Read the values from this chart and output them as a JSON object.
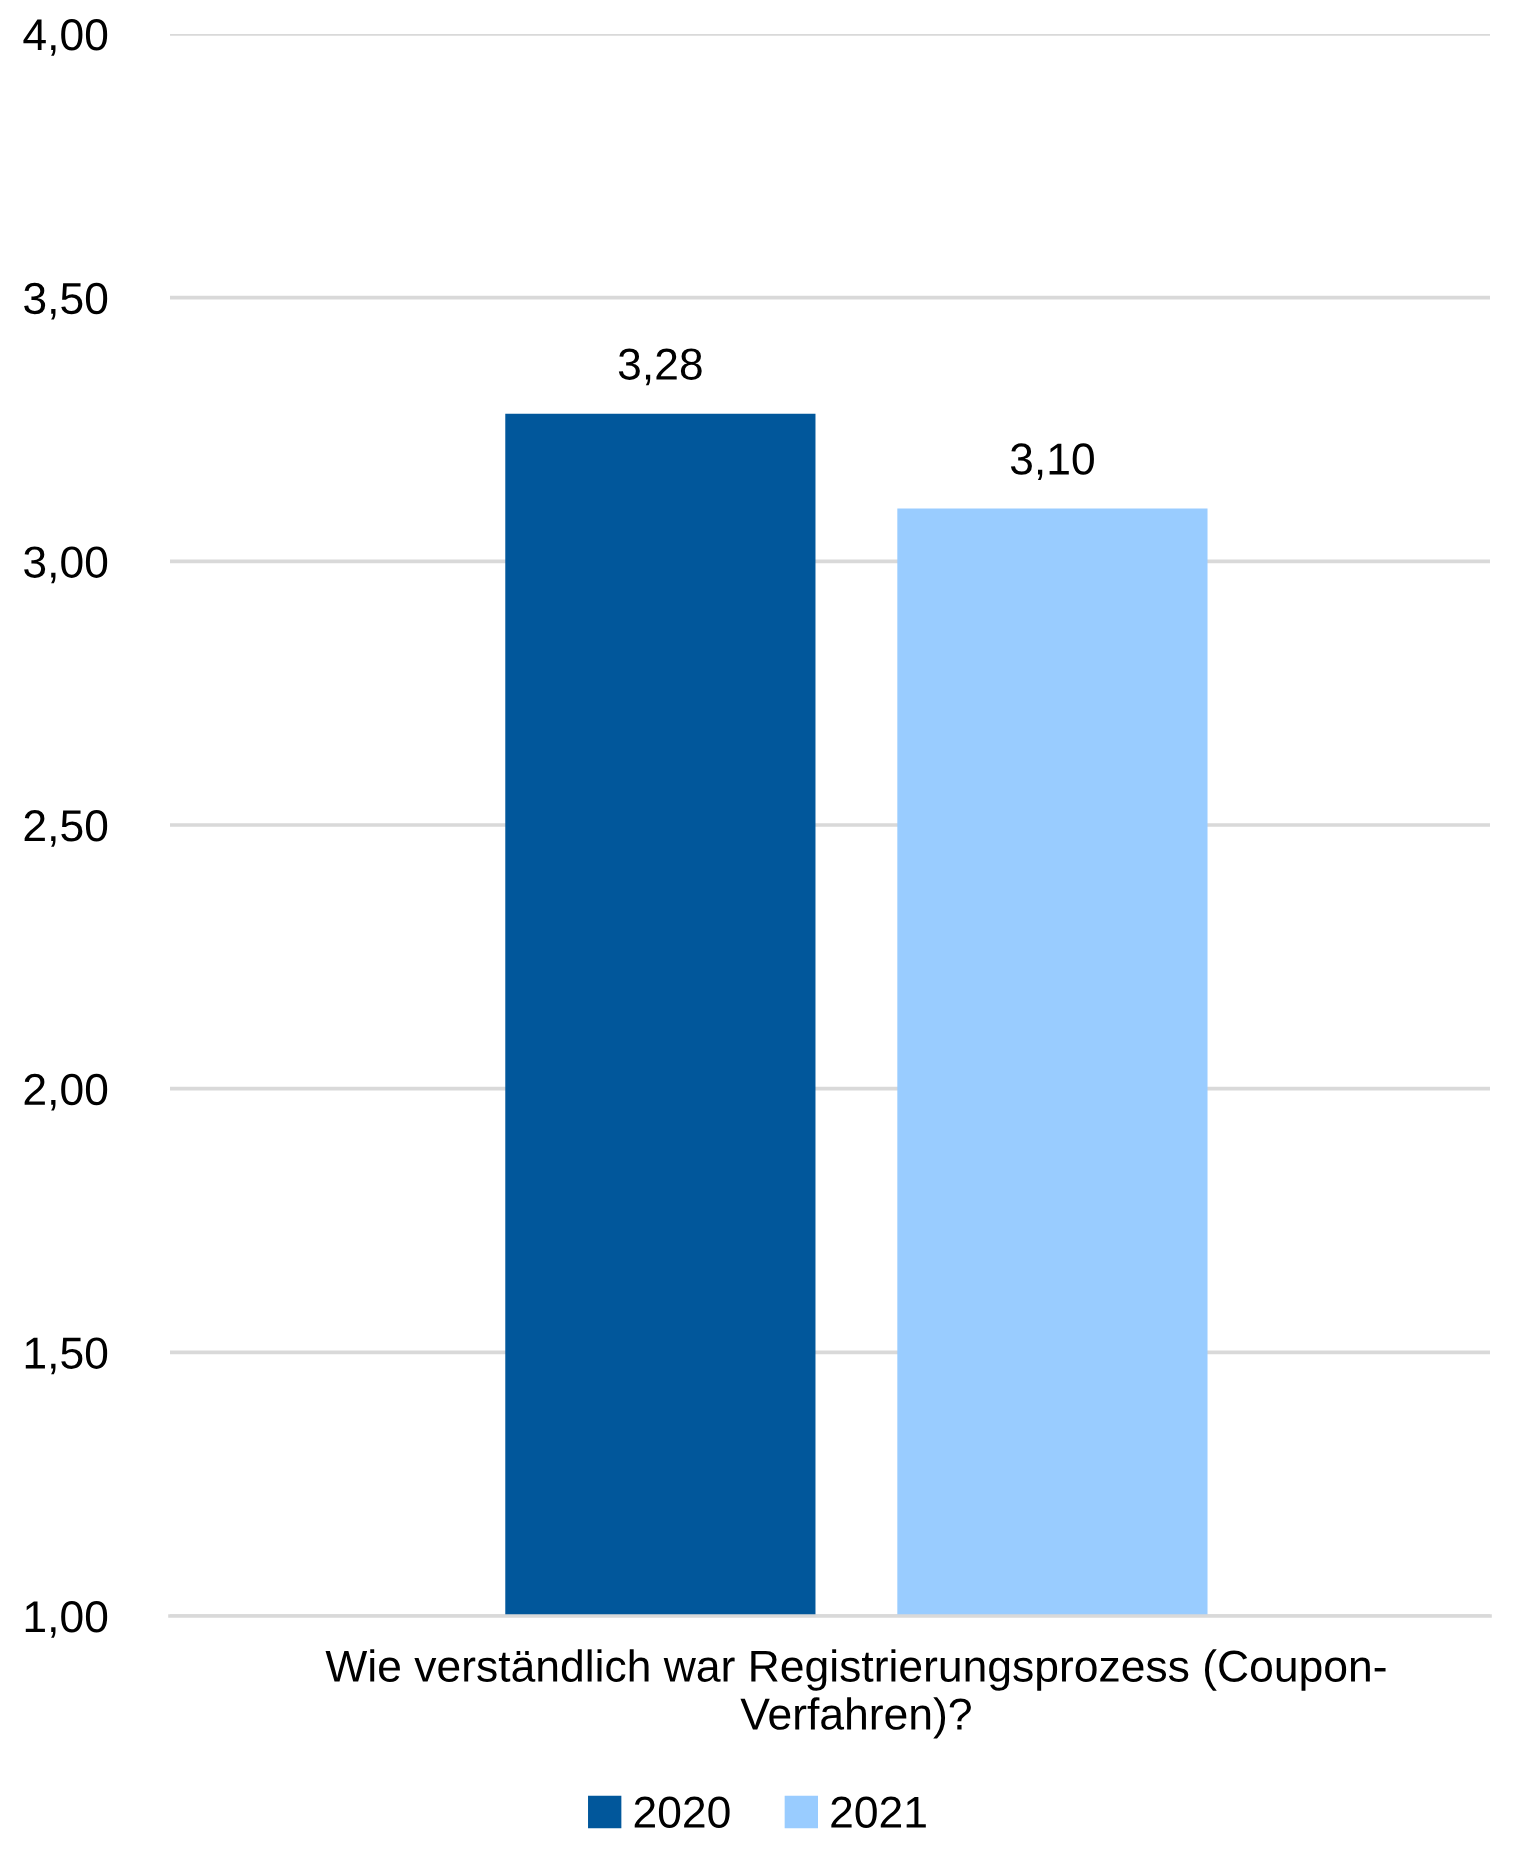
{
  "chart_data": {
    "type": "bar",
    "categories": [
      "Wie verständlich war Registrierungsprozess (Coupon-\nVerfahren)?"
    ],
    "series": [
      {
        "name": "2020",
        "color": "#01579b",
        "values": [
          3.28
        ],
        "value_labels": [
          "3,28"
        ]
      },
      {
        "name": "2021",
        "color": "#99ccff",
        "values": [
          3.1
        ],
        "value_labels": [
          "3,10"
        ]
      }
    ],
    "ylim": [
      1,
      4
    ],
    "yticks": [
      {
        "value": 1,
        "label": "1,00"
      },
      {
        "value": 1.5,
        "label": "1,50"
      },
      {
        "value": 2,
        "label": "2,00"
      },
      {
        "value": 2.5,
        "label": "2,50"
      },
      {
        "value": 3,
        "label": "3,00"
      },
      {
        "value": 3.5,
        "label": "3,50"
      },
      {
        "value": 4,
        "label": "4,00"
      }
    ],
    "grid": "y",
    "legend": "bottom"
  }
}
